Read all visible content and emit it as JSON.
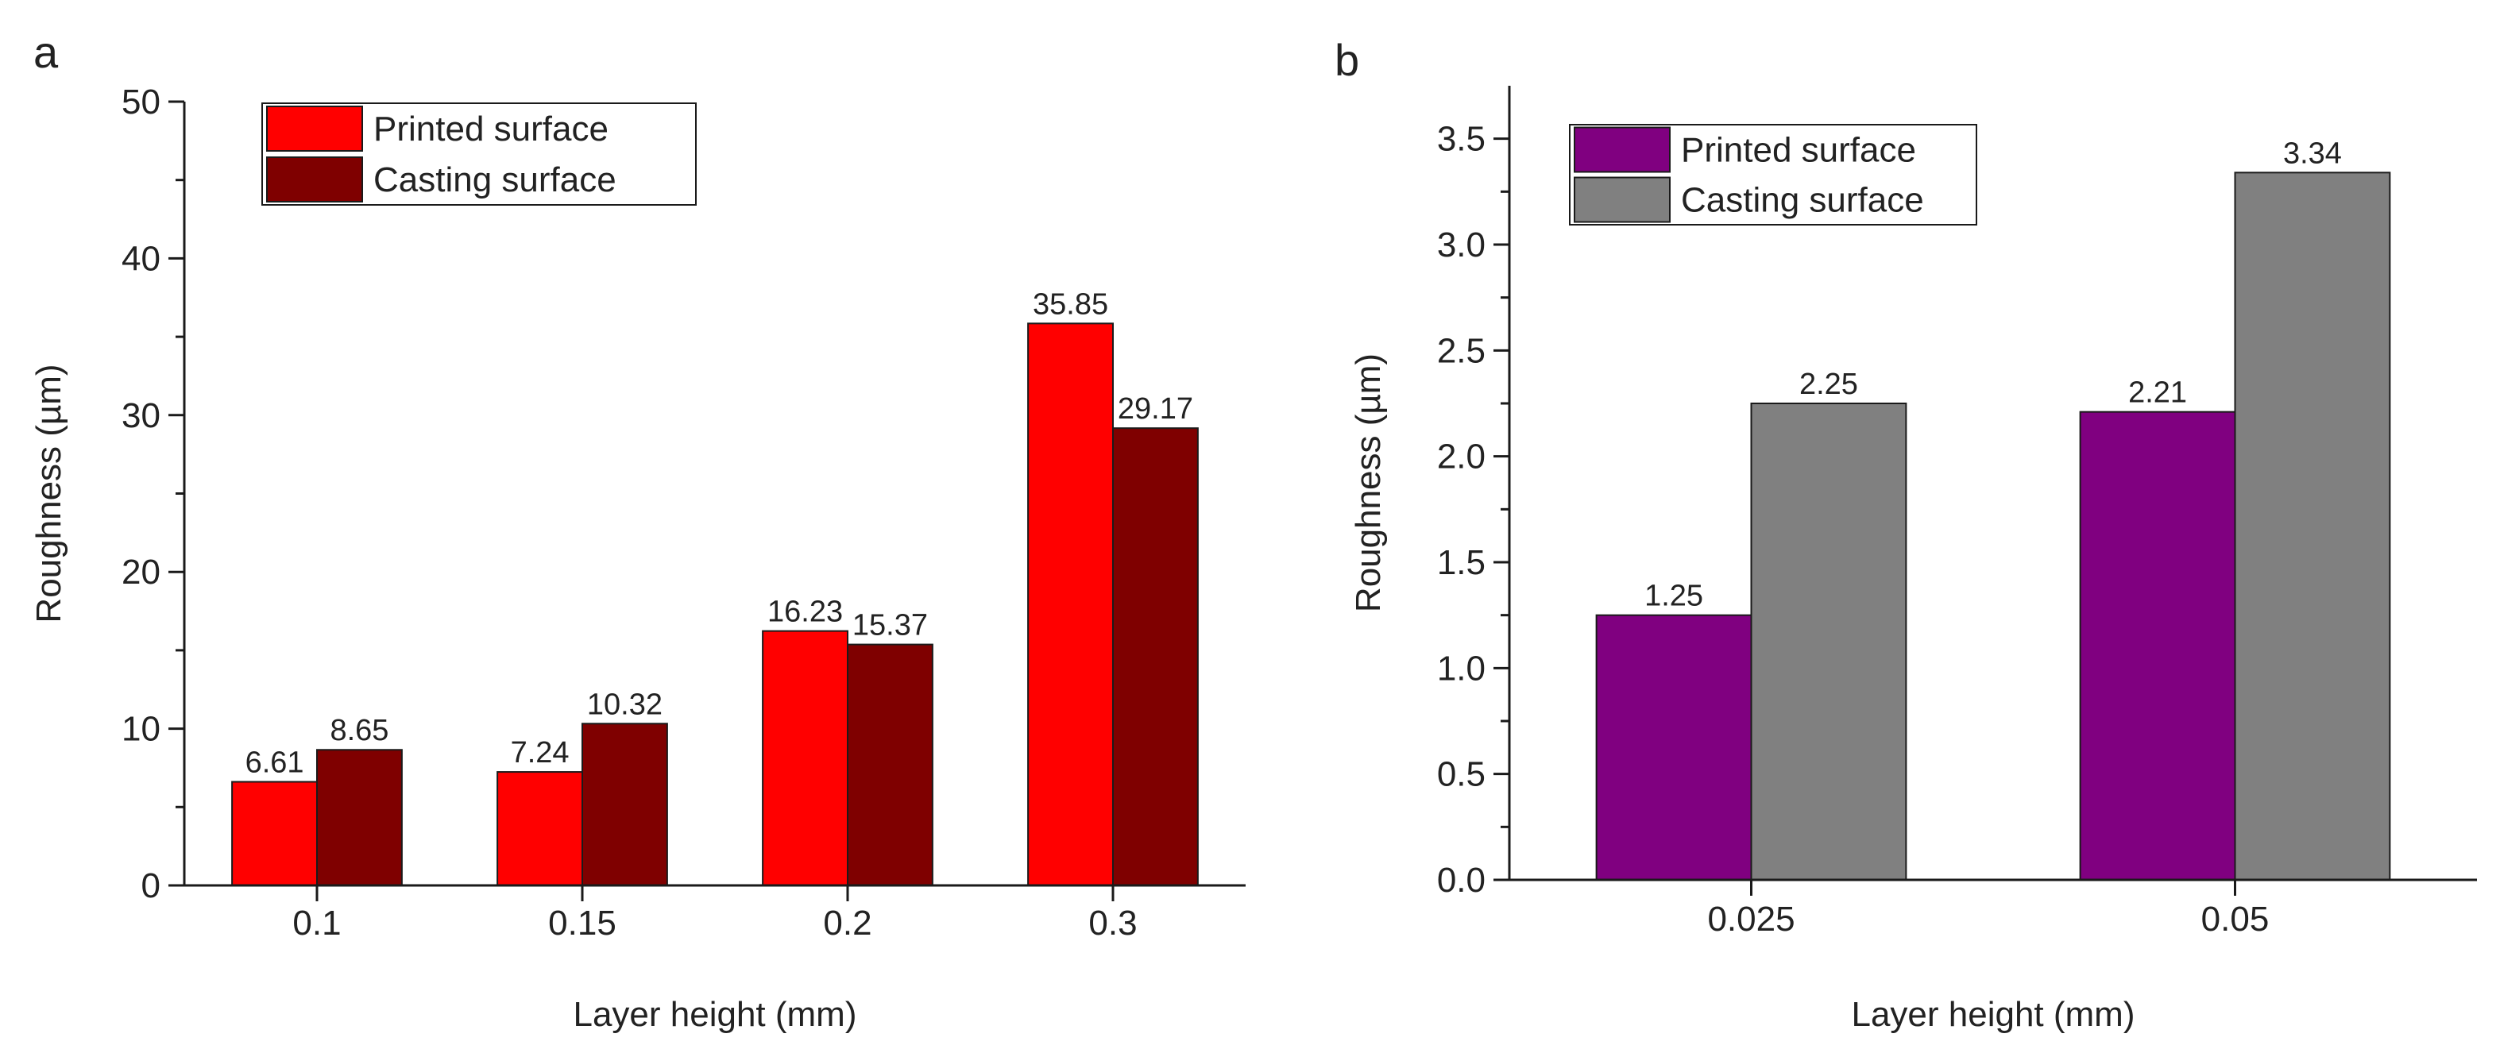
{
  "panels": [
    {
      "letter": "a",
      "chart_data": {
        "type": "bar",
        "title": "",
        "xlabel": "Layer height (mm)",
        "ylabel": "Roughness (µm)",
        "categories": [
          "0.1",
          "0.15",
          "0.2",
          "0.3"
        ],
        "ylim": [
          0,
          50
        ],
        "yticks": [
          "0",
          "10",
          "20",
          "30",
          "40",
          "50"
        ],
        "grid": false,
        "legend_position": "top-left",
        "series": [
          {
            "name": "Printed surface",
            "color": "#ff0000",
            "values": [
              6.61,
              7.24,
              16.23,
              35.85
            ],
            "labels": [
              "6.61",
              "7.24",
              "16.23",
              "35.85"
            ]
          },
          {
            "name": "Casting surface",
            "color": "#7f0000",
            "values": [
              8.65,
              10.32,
              15.37,
              29.17
            ],
            "labels": [
              "8.65",
              "10.32",
              "15.37",
              "29.17"
            ]
          }
        ]
      }
    },
    {
      "letter": "b",
      "chart_data": {
        "type": "bar",
        "title": "",
        "xlabel": "Layer height (mm)",
        "ylabel": "Roughness (µm)",
        "categories": [
          "0.025",
          "0.05"
        ],
        "ylim": [
          0,
          3.75
        ],
        "yticks": [
          "0.0",
          "0.5",
          "1.0",
          "1.5",
          "2.0",
          "2.5",
          "3.0",
          "3.5"
        ],
        "grid": false,
        "legend_position": "top-left",
        "series": [
          {
            "name": "Printed surface",
            "color": "#800080",
            "values": [
              1.25,
              2.21
            ],
            "labels": [
              "1.25",
              "2.21"
            ]
          },
          {
            "name": "Casting surface",
            "color": "#808080",
            "values": [
              2.25,
              3.34
            ],
            "labels": [
              "2.25",
              "3.34"
            ]
          }
        ]
      }
    }
  ]
}
